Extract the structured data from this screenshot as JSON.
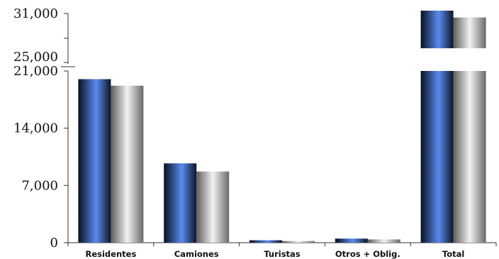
{
  "chart_data": {
    "type": "bar",
    "categories": [
      "Residentes",
      "Camiones",
      "Turistas",
      "Otros + Oblig.",
      "Total"
    ],
    "series": [
      {
        "values": [
          20000,
          9700,
          300,
          500,
          31500
        ]
      },
      {
        "values": [
          19200,
          8700,
          200,
          400,
          30300
        ]
      }
    ],
    "y_lower_ticks": [
      "0",
      "7,000",
      "14,000",
      "21,000"
    ],
    "y_upper_ticks": [
      "25,000",
      "31,000"
    ],
    "y_lower_range": [
      0,
      21000
    ],
    "y_upper_range": [
      25000,
      31000
    ],
    "axis_break": true,
    "grid": false,
    "legend": "none",
    "colors": {
      "series1": "#4f7fe6",
      "series2": "#bdbdbd",
      "axis": "#333333"
    }
  }
}
